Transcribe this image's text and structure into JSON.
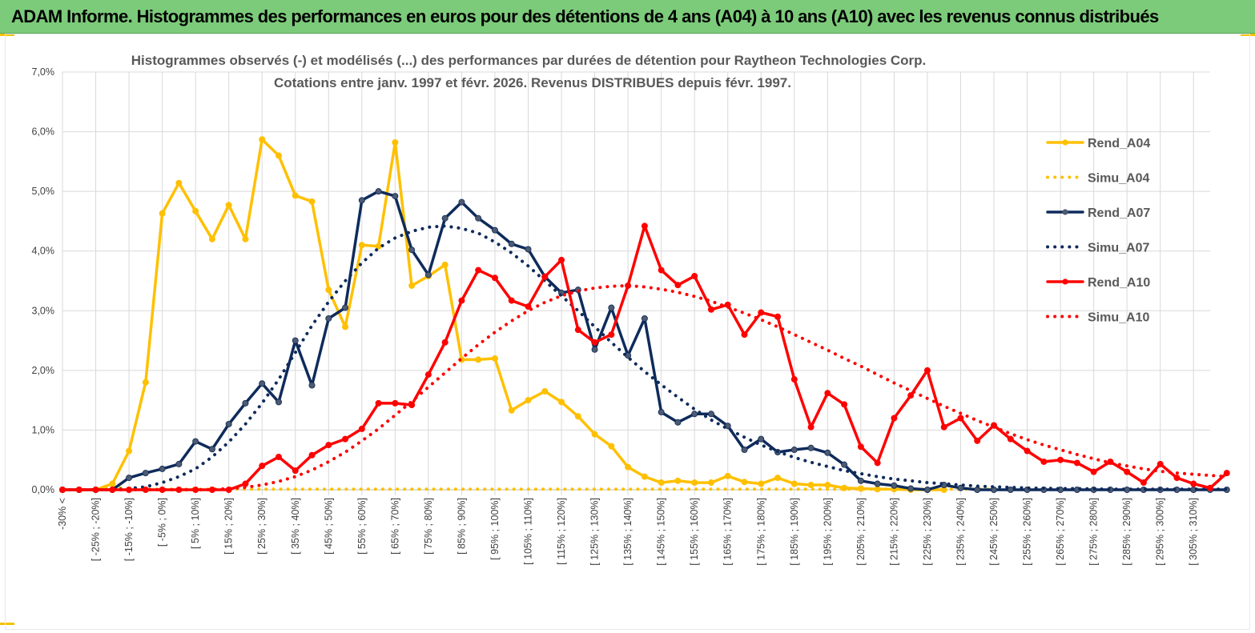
{
  "header": {
    "title": "ADAM Informe. Histogrammes des performances en euros pour des détentions de 4 ans (A04) à 10 ans (A10) avec les revenus connus distribués"
  },
  "colors": {
    "a04": "#ffc000",
    "a07": "#0f2b5b",
    "a07_marker": "#4d5a70",
    "a10": "#ff0000",
    "banner": "#7ccb7a",
    "grid": "#d9d9d9"
  },
  "chart_data": {
    "type": "line",
    "title": [
      "Histogrammes observés (-)  et modélisés (...) des performances par durées de détention pour Raytheon Technologies Corp.",
      "Cotations entre janv. 1997 et févr. 2026. Revenus DISTRIBUES depuis févr. 1997."
    ],
    "xlabel": "",
    "ylabel": "",
    "ylim": [
      0,
      7
    ],
    "y_ticks": [
      "0,0%",
      "1,0%",
      "2,0%",
      "3,0%",
      "4,0%",
      "5,0%",
      "6,0%",
      "7,0%"
    ],
    "x_labels": [
      "-30% <",
      "[ -25% ; -20%]",
      "[ -15% ; -10%]",
      "[ -5% ; 0%]",
      "[ 5% ; 10%]",
      "[ 15% ; 20%]",
      "[ 25% ; 30%]",
      "[ 35% ; 40%]",
      "[ 45% ; 50%]",
      "[ 55% ; 60%]",
      "[ 65% ; 70%]",
      "[ 75% ; 80%]",
      "[ 85% ; 90%]",
      "[ 95% ; 100%]",
      "[ 105% ; 110%]",
      "[ 115% ; 120%]",
      "[ 125% ; 130%]",
      "[ 135% ; 140%]",
      "[ 145% ; 150%]",
      "[ 155% ; 160%]",
      "[ 165% ; 170%]",
      "[ 175% ; 180%]",
      "[ 185% ; 190%]",
      "[ 195% ; 200%]",
      "[ 205% ; 210%]",
      "[ 215% ; 220%]",
      "[ 225% ; 230%]",
      "[ 235% ; 240%]",
      "[ 245% ; 250%]",
      "[ 255% ; 260%]",
      "[ 265% ; 270%]",
      "[ 275% ; 280%]",
      "[ 285% ; 290%]",
      "[ 295% ; 300%]",
      "[ 305% ; 310%]"
    ],
    "legend_position": "right",
    "series": [
      {
        "name": "Rend_A04",
        "style": "solid",
        "color_key": "a04",
        "marker": "circle",
        "values": [
          0,
          0,
          0,
          0.1,
          0.65,
          1.8,
          4.63,
          5.14,
          4.67,
          4.2,
          4.77,
          4.2,
          5.87,
          5.6,
          4.93,
          4.83,
          3.35,
          2.73,
          4.1,
          4.08,
          5.82,
          3.42,
          3.58,
          3.77,
          2.18,
          2.18,
          2.2,
          1.33,
          1.5,
          1.65,
          1.47,
          1.23,
          0.93,
          0.73,
          0.38,
          0.22,
          0.12,
          0.15,
          0.12,
          0.12,
          0.23,
          0.13,
          0.1,
          0.2,
          0.1,
          0.08,
          0.08,
          0.03,
          0.02,
          0.01,
          0.01,
          0,
          0,
          0
        ]
      },
      {
        "name": "Simu_A04",
        "style": "dotted",
        "color_key": "a04",
        "values": [
          0,
          0,
          0,
          0.05,
          0.01,
          0.01,
          0.01,
          0.01,
          0.01,
          0.01,
          0.01,
          0.01,
          0.01,
          0.01,
          0.01,
          0.01,
          0.01,
          0.01,
          0.01,
          0.01,
          0.01,
          0.01,
          0.01,
          0.01,
          0.01,
          0.01,
          0.01,
          0.01,
          0.01,
          0.01,
          0.01,
          0.01,
          0.01,
          0.01,
          0.01,
          0.01,
          0.01,
          0.01,
          0.01,
          0.01,
          0.01,
          0.01,
          0.01,
          0.01,
          0.01,
          0.01,
          0.01,
          0.01,
          0.01,
          0.01,
          0.01,
          0.01,
          0.01,
          0.01,
          0.01,
          0.01,
          0.01
        ]
      },
      {
        "name": "Rend_A07",
        "style": "solid",
        "color_key": "a07",
        "marker": "circle",
        "values": [
          0,
          0,
          0,
          0,
          0.2,
          0.28,
          0.35,
          0.43,
          0.81,
          0.68,
          1.1,
          1.45,
          1.78,
          1.47,
          2.5,
          1.75,
          2.87,
          3.05,
          4.85,
          5.0,
          4.92,
          4.02,
          3.6,
          4.55,
          4.82,
          4.55,
          4.35,
          4.12,
          4.03,
          3.57,
          3.3,
          3.35,
          2.35,
          3.05,
          2.25,
          2.87,
          1.3,
          1.13,
          1.27,
          1.27,
          1.07,
          0.67,
          0.85,
          0.63,
          0.67,
          0.7,
          0.62,
          0.42,
          0.15,
          0.1,
          0.07,
          0.02,
          0,
          0.08,
          0.03,
          0,
          0,
          0,
          0,
          0,
          0,
          0,
          0,
          0,
          0,
          0,
          0,
          0,
          0,
          0,
          0
        ]
      },
      {
        "name": "Simu_A07",
        "style": "dotted",
        "color_key": "a07",
        "values": [
          0,
          0,
          0,
          0,
          0.02,
          0.05,
          0.12,
          0.22,
          0.35,
          0.55,
          0.8,
          1.1,
          1.45,
          1.85,
          2.3,
          2.75,
          3.15,
          3.5,
          3.8,
          4.05,
          4.22,
          4.33,
          4.4,
          4.42,
          4.38,
          4.3,
          4.15,
          3.97,
          3.75,
          3.5,
          3.25,
          3.0,
          2.73,
          2.47,
          2.22,
          1.98,
          1.76,
          1.55,
          1.35,
          1.17,
          1.02,
          0.88,
          0.75,
          0.64,
          0.54,
          0.46,
          0.39,
          0.32,
          0.27,
          0.22,
          0.18,
          0.15,
          0.12,
          0.1,
          0.08,
          0.06,
          0.05,
          0.04,
          0.03,
          0.025,
          0.02,
          0.02,
          0.015,
          0.01,
          0.01,
          0.01,
          0.01,
          0.01,
          0.01,
          0.01,
          0.01
        ]
      },
      {
        "name": "Rend_A10",
        "style": "solid",
        "color_key": "a10",
        "marker": "circle",
        "values": [
          0,
          0,
          0,
          0,
          0,
          0,
          0,
          0,
          0,
          0,
          0,
          0.1,
          0.4,
          0.55,
          0.32,
          0.58,
          0.75,
          0.85,
          1.02,
          1.45,
          1.45,
          1.42,
          1.93,
          2.47,
          3.17,
          3.68,
          3.55,
          3.17,
          3.07,
          3.57,
          3.85,
          2.68,
          2.47,
          2.6,
          3.42,
          4.42,
          3.68,
          3.43,
          3.58,
          3.02,
          3.1,
          2.6,
          2.97,
          2.9,
          1.85,
          1.05,
          1.62,
          1.43,
          0.72,
          0.45,
          1.2,
          1.58,
          2.0,
          1.05,
          1.2,
          0.82,
          1.08,
          0.85,
          0.65,
          0.47,
          0.5,
          0.45,
          0.3,
          0.47,
          0.3,
          0.12,
          0.43,
          0.2,
          0.1,
          0.03,
          0.28
        ]
      },
      {
        "name": "Simu_A10",
        "style": "dotted",
        "color_key": "a10",
        "values": [
          0,
          0,
          0,
          0,
          0,
          0,
          0,
          0,
          0,
          0,
          0.02,
          0.04,
          0.08,
          0.14,
          0.22,
          0.33,
          0.47,
          0.63,
          0.82,
          1.02,
          1.25,
          1.48,
          1.72,
          1.96,
          2.2,
          2.43,
          2.64,
          2.83,
          3.0,
          3.14,
          3.25,
          3.33,
          3.38,
          3.41,
          3.42,
          3.4,
          3.36,
          3.31,
          3.24,
          3.16,
          3.06,
          2.96,
          2.85,
          2.73,
          2.6,
          2.47,
          2.34,
          2.2,
          2.07,
          1.93,
          1.79,
          1.66,
          1.53,
          1.4,
          1.28,
          1.16,
          1.05,
          0.94,
          0.84,
          0.75,
          0.67,
          0.59,
          0.52,
          0.45,
          0.4,
          0.35,
          0.31,
          0.28,
          0.26,
          0.24,
          0.22
        ]
      }
    ]
  }
}
